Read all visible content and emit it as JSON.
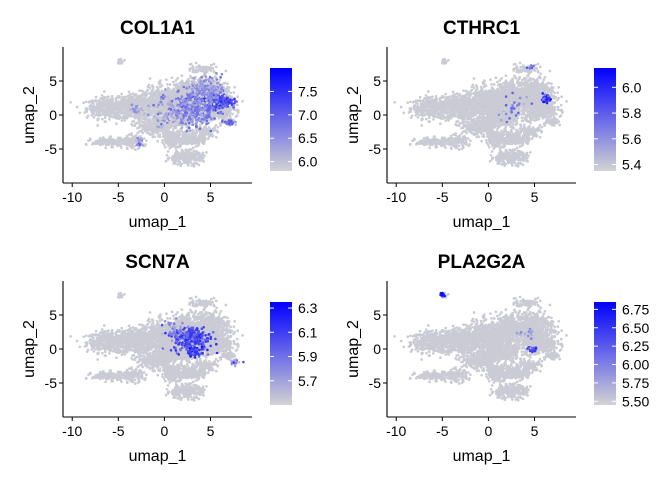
{
  "colors": {
    "low": "#d3d3d3",
    "high": "#0000ff",
    "axis": "#000000",
    "background": "#ffffff"
  },
  "chart_data": [
    {
      "type": "scatter",
      "title": "COL1A1",
      "xlabel": "umap_1",
      "ylabel": "umap_2",
      "xlim": [
        -11,
        9.5
      ],
      "ylim": [
        -10,
        10
      ],
      "xticks": [
        -10,
        -5,
        0,
        5
      ],
      "yticks": [
        -5,
        0,
        5
      ],
      "color_scale": {
        "min": 5.8,
        "max": 8.0,
        "breaks": [
          6.0,
          6.5,
          7.0,
          7.5
        ],
        "labels": [
          "6.0",
          "6.5",
          "7.0",
          "7.5"
        ]
      },
      "hotspots": [
        {
          "x": 5.2,
          "y": 2.0,
          "sx": 1.6,
          "sy": 0.8,
          "n": 700,
          "value": 7.6
        },
        {
          "x": 3.0,
          "y": 1.0,
          "sx": 2.3,
          "sy": 2.0,
          "n": 450,
          "value": 7.0
        },
        {
          "x": 4.5,
          "y": 4.0,
          "sx": 1.5,
          "sy": 1.4,
          "n": 160,
          "value": 6.8
        },
        {
          "x": -3.0,
          "y": 0.8,
          "sx": 0.6,
          "sy": 0.6,
          "n": 35,
          "value": 6.7
        },
        {
          "x": -2.7,
          "y": -4.0,
          "sx": 0.3,
          "sy": 0.6,
          "n": 20,
          "value": 7.0
        },
        {
          "x": 7.0,
          "y": -1.0,
          "sx": 0.5,
          "sy": 0.3,
          "n": 25,
          "value": 7.2
        },
        {
          "x": 0.2,
          "y": 0.2,
          "sx": 1.8,
          "sy": 1.6,
          "n": 90,
          "value": 6.5
        }
      ]
    },
    {
      "type": "scatter",
      "title": "CTHRC1",
      "xlabel": "umap_1",
      "ylabel": "umap_2",
      "xlim": [
        -11,
        9.5
      ],
      "ylim": [
        -10,
        10
      ],
      "xticks": [
        -10,
        -5,
        0,
        5
      ],
      "yticks": [
        -5,
        0,
        5
      ],
      "color_scale": {
        "min": 5.35,
        "max": 6.15,
        "breaks": [
          5.4,
          5.6,
          5.8,
          6.0
        ],
        "labels": [
          "5.4",
          "5.6",
          "5.8",
          "6.0"
        ]
      },
      "hotspots": [
        {
          "x": 6.2,
          "y": 2.4,
          "sx": 0.35,
          "sy": 0.45,
          "n": 60,
          "value": 6.1
        },
        {
          "x": 4.5,
          "y": 7.0,
          "sx": 0.4,
          "sy": 0.3,
          "n": 8,
          "value": 5.9
        },
        {
          "x": 2.5,
          "y": 1.0,
          "sx": 2.0,
          "sy": 1.8,
          "n": 30,
          "value": 5.8
        }
      ]
    },
    {
      "type": "scatter",
      "title": "SCN7A",
      "xlabel": "umap_1",
      "ylabel": "umap_2",
      "xlim": [
        -11,
        9.5
      ],
      "ylim": [
        -10,
        10
      ],
      "xticks": [
        -10,
        -5,
        0,
        5
      ],
      "yticks": [
        -5,
        0,
        5
      ],
      "color_scale": {
        "min": 5.5,
        "max": 6.35,
        "breaks": [
          5.7,
          5.9,
          6.1,
          6.3
        ],
        "labels": [
          "5.7",
          "5.9",
          "6.1",
          "6.3"
        ]
      },
      "hotspots": [
        {
          "x": 3.0,
          "y": 1.5,
          "sx": 1.6,
          "sy": 1.6,
          "n": 260,
          "value": 6.2
        },
        {
          "x": 3.3,
          "y": -0.5,
          "sx": 0.8,
          "sy": 0.5,
          "n": 60,
          "value": 6.3
        },
        {
          "x": 7.5,
          "y": -2.0,
          "sx": 0.5,
          "sy": 0.4,
          "n": 18,
          "value": 6.1
        },
        {
          "x": 1.0,
          "y": 3.0,
          "sx": 1.5,
          "sy": 1.0,
          "n": 40,
          "value": 5.9
        }
      ]
    },
    {
      "type": "scatter",
      "title": "PLA2G2A",
      "xlabel": "umap_1",
      "ylabel": "umap_2",
      "xlim": [
        -11,
        9.5
      ],
      "ylim": [
        -10,
        10
      ],
      "xticks": [
        -10,
        -5,
        0,
        5
      ],
      "yticks": [
        -5,
        0,
        5
      ],
      "color_scale": {
        "min": 5.45,
        "max": 6.85,
        "breaks": [
          5.5,
          5.75,
          6.0,
          6.25,
          6.5,
          6.75
        ],
        "labels": [
          "5.50",
          "5.75",
          "6.00",
          "6.25",
          "6.50",
          "6.75"
        ]
      },
      "hotspots": [
        {
          "x": -5.0,
          "y": 8.0,
          "sx": 0.25,
          "sy": 0.2,
          "n": 25,
          "value": 6.8
        },
        {
          "x": 4.8,
          "y": 0.0,
          "sx": 0.4,
          "sy": 0.3,
          "n": 40,
          "value": 6.6
        },
        {
          "x": 4.0,
          "y": 2.0,
          "sx": 0.8,
          "sy": 0.8,
          "n": 15,
          "value": 6.0
        }
      ]
    }
  ]
}
